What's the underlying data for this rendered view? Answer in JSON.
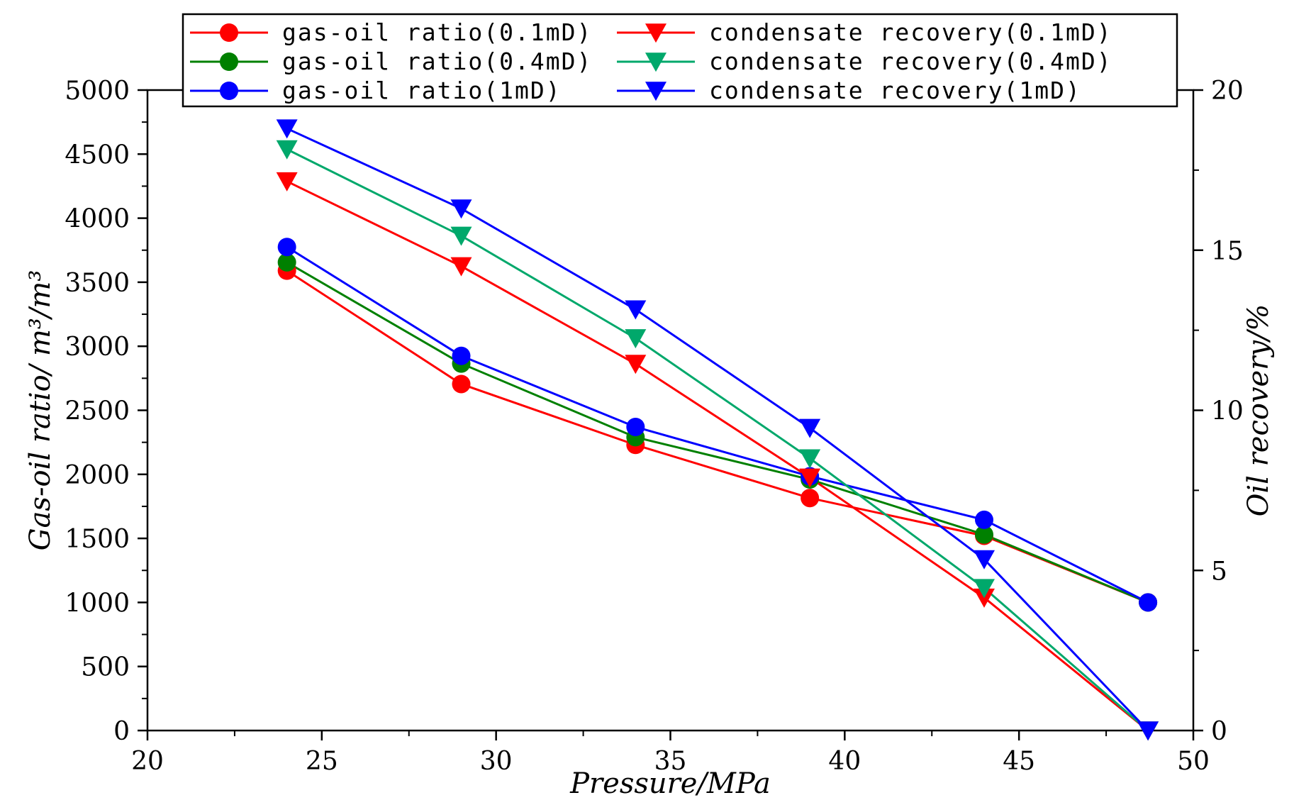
{
  "chart_data": {
    "type": "line",
    "xlabel": "Pressure/MPa",
    "ylabel_left": "Gas-oil ratio/ m³/m³",
    "ylabel_right": "Oil recovery/%",
    "xlim": [
      20,
      50
    ],
    "ylim_left": [
      0,
      5000
    ],
    "ylim_right": [
      0,
      20
    ],
    "xticks": [
      20,
      25,
      30,
      35,
      40,
      45,
      50
    ],
    "yticks_left": [
      0,
      500,
      1000,
      1500,
      2000,
      2500,
      3000,
      3500,
      4000,
      4500,
      5000
    ],
    "yticks_right": [
      0,
      5,
      10,
      15,
      20
    ],
    "grid": false,
    "legend_position": "top",
    "series": [
      {
        "name": "gas-oil ratio(0.1mD)",
        "axis": "left",
        "marker": "circle",
        "color": "#ff0000",
        "x": [
          24,
          29,
          34,
          39,
          44,
          48.7
        ],
        "y": [
          3590,
          2705,
          2230,
          1815,
          1520,
          1000
        ]
      },
      {
        "name": "gas-oil ratio(0.4mD)",
        "axis": "left",
        "marker": "circle",
        "color": "#008000",
        "x": [
          24,
          29,
          34,
          39,
          44,
          48.7
        ],
        "y": [
          3655,
          2865,
          2290,
          1960,
          1530,
          1000
        ]
      },
      {
        "name": "gas-oil ratio(1mD)",
        "axis": "left",
        "marker": "circle",
        "color": "#0000ff",
        "x": [
          24,
          29,
          34,
          39,
          44,
          48.7
        ],
        "y": [
          3775,
          2925,
          2370,
          1985,
          1645,
          1000
        ]
      },
      {
        "name": "condensate recovery(0.1mD)",
        "axis": "right",
        "marker": "triangle-down",
        "color": "#ff0000",
        "x": [
          24,
          29,
          34,
          39,
          44,
          48.7
        ],
        "y": [
          17.15,
          14.5,
          11.45,
          7.9,
          4.15,
          0
        ]
      },
      {
        "name": "condensate recovery(0.4mD)",
        "axis": "right",
        "marker": "triangle-down",
        "color": "#00a86b",
        "x": [
          24,
          29,
          34,
          39,
          44,
          48.7
        ],
        "y": [
          18.15,
          15.45,
          12.25,
          8.5,
          4.45,
          0
        ]
      },
      {
        "name": "condensate recovery(1mD)",
        "axis": "right",
        "marker": "triangle-down",
        "color": "#0000ff",
        "x": [
          24,
          29,
          34,
          39,
          44,
          48.7
        ],
        "y": [
          18.8,
          16.3,
          13.15,
          9.45,
          5.35,
          0
        ]
      }
    ]
  }
}
